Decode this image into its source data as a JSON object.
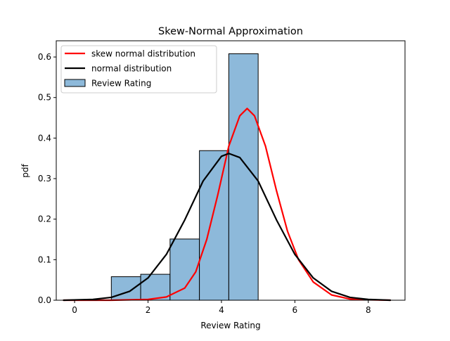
{
  "chart_data": {
    "type": "bar",
    "title": "Skew-Normal Approximation",
    "xlabel": "Review Rating",
    "ylabel": "pdf",
    "xlim": [
      -0.5,
      9.0
    ],
    "ylim": [
      0.0,
      0.64
    ],
    "xticks": [
      0,
      2,
      4,
      6,
      8
    ],
    "yticks": [
      0.0,
      0.1,
      0.2,
      0.3,
      0.4,
      0.5,
      0.6
    ],
    "xtick_labels": [
      "0",
      "2",
      "4",
      "6",
      "8"
    ],
    "ytick_labels": [
      "0.0",
      "0.1",
      "0.2",
      "0.3",
      "0.4",
      "0.5",
      "0.6"
    ],
    "grid": false,
    "legend_position": "top-left",
    "histogram": {
      "name": "Review Rating",
      "color": "#8db9da",
      "edge_color": "#000000",
      "bins": [
        {
          "x0": 1.0,
          "x1": 1.8,
          "density": 0.058
        },
        {
          "x0": 1.8,
          "x1": 2.6,
          "density": 0.064
        },
        {
          "x0": 2.6,
          "x1": 3.4,
          "density": 0.151
        },
        {
          "x0": 3.4,
          "x1": 4.2,
          "density": 0.369
        },
        {
          "x0": 4.2,
          "x1": 5.0,
          "density": 0.608
        }
      ]
    },
    "series": [
      {
        "name": "skew normal distribution",
        "color": "#ff0000",
        "x": [
          -0.3,
          1.0,
          2.0,
          2.5,
          3.0,
          3.3,
          3.6,
          3.9,
          4.2,
          4.5,
          4.7,
          4.9,
          5.2,
          5.5,
          5.8,
          6.1,
          6.5,
          7.0,
          7.5,
          8.0,
          8.6
        ],
        "y": [
          0.0,
          0.0,
          0.002,
          0.008,
          0.03,
          0.07,
          0.15,
          0.26,
          0.38,
          0.455,
          0.473,
          0.455,
          0.38,
          0.27,
          0.17,
          0.1,
          0.045,
          0.013,
          0.003,
          0.001,
          0.0
        ]
      },
      {
        "name": "normal distribution",
        "color": "#000000",
        "x": [
          -0.3,
          0.5,
          1.0,
          1.5,
          2.0,
          2.5,
          3.0,
          3.5,
          4.0,
          4.2,
          4.5,
          5.0,
          5.5,
          6.0,
          6.5,
          7.0,
          7.5,
          8.0,
          8.6
        ],
        "y": [
          0.0,
          0.002,
          0.007,
          0.022,
          0.055,
          0.113,
          0.198,
          0.294,
          0.355,
          0.362,
          0.352,
          0.294,
          0.198,
          0.113,
          0.055,
          0.022,
          0.007,
          0.002,
          0.0
        ]
      }
    ]
  }
}
